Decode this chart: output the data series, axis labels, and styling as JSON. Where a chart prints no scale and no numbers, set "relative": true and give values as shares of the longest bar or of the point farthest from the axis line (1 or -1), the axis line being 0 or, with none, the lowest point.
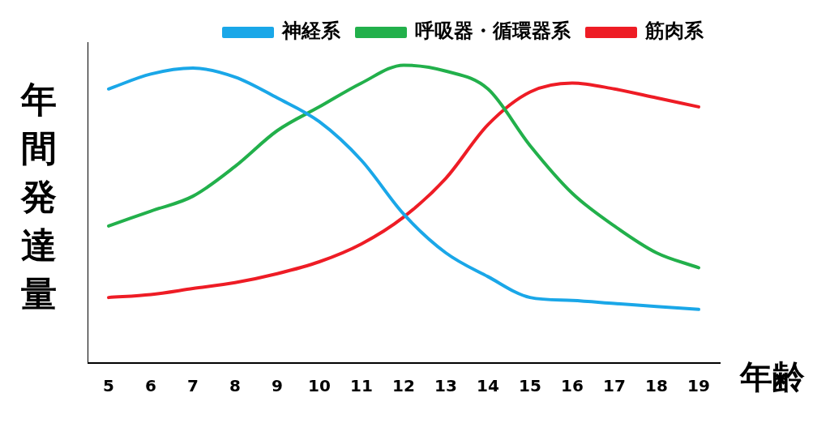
{
  "chart_data": {
    "type": "line",
    "relative": true,
    "xlabel": "年齢",
    "ylabel": "年間発達量",
    "categories": [
      "5",
      "6",
      "7",
      "8",
      "9",
      "10",
      "11",
      "12",
      "13",
      "14",
      "15",
      "16",
      "17",
      "18",
      "19"
    ],
    "series": [
      {
        "name": "神経系",
        "color": "#1aa7e8",
        "values": [
          0.92,
          0.97,
          0.99,
          0.96,
          0.89,
          0.81,
          0.68,
          0.5,
          0.37,
          0.29,
          0.22,
          0.21,
          0.2,
          0.19,
          0.18
        ]
      },
      {
        "name": "呼吸器・循環器系",
        "color": "#22b04b",
        "values": [
          0.46,
          0.51,
          0.56,
          0.66,
          0.78,
          0.86,
          0.94,
          1,
          0.98,
          0.92,
          0.73,
          0.57,
          0.46,
          0.37,
          0.32
        ]
      },
      {
        "name": "筋肉系",
        "color": "#ee1c25",
        "values": [
          0.22,
          0.23,
          0.25,
          0.27,
          0.3,
          0.34,
          0.4,
          0.49,
          0.62,
          0.8,
          0.91,
          0.94,
          0.92,
          0.89,
          0.86
        ]
      }
    ],
    "legend": "top",
    "grid": false,
    "marker": "none",
    "line_style": "solid"
  }
}
